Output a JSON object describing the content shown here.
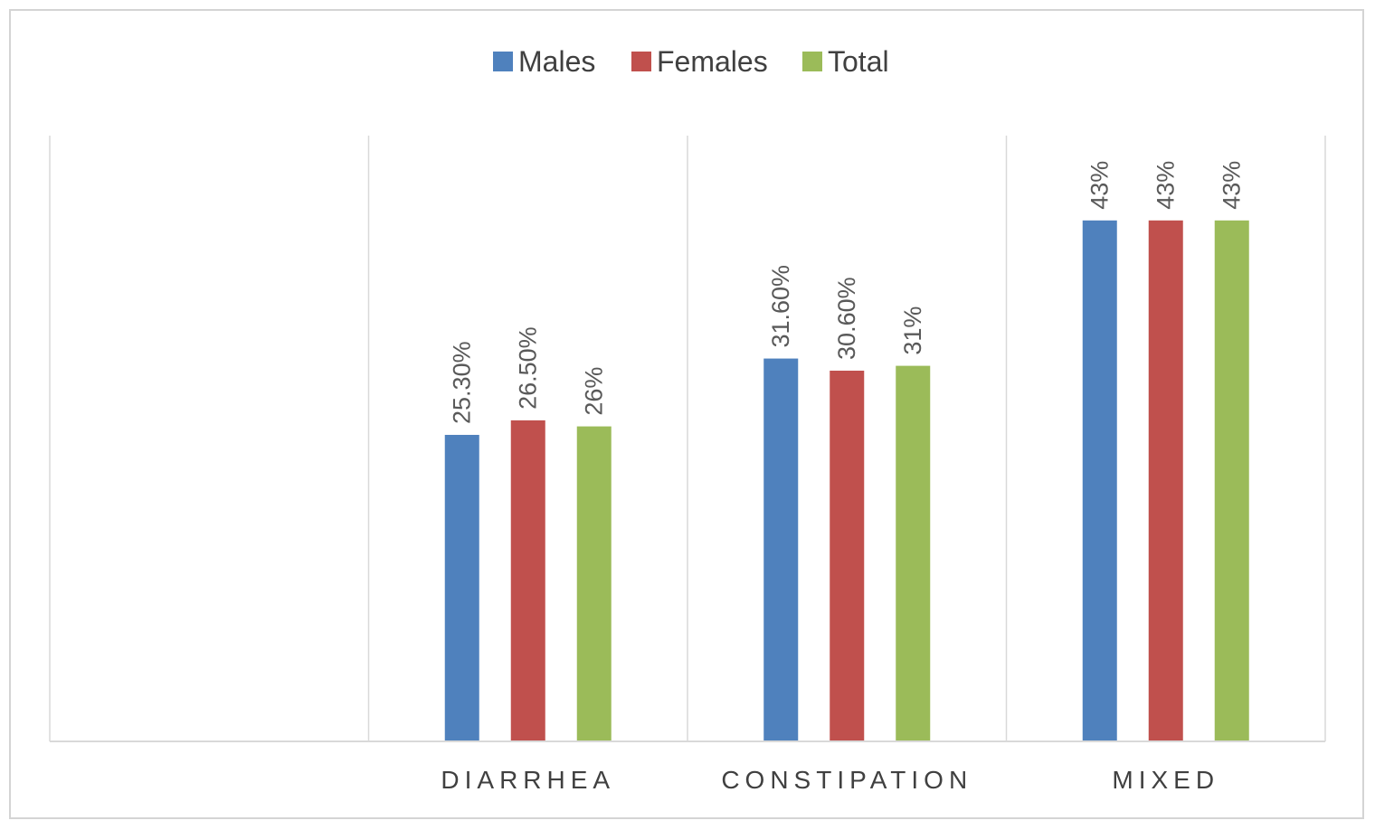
{
  "chart_data": {
    "type": "bar",
    "title": "",
    "xlabel": "",
    "ylabel": "",
    "ylim": [
      0,
      50
    ],
    "grid": "vertical category separators",
    "legend_position": "top",
    "categories": [
      "",
      "DIARRHEA",
      "CONSTIPATION",
      "MIXED"
    ],
    "series": [
      {
        "name": "Males",
        "color": "#4f81bd",
        "values": [
          null,
          25.3,
          31.6,
          43
        ],
        "labels": [
          "",
          "25.30%",
          "31.60%",
          "43%"
        ]
      },
      {
        "name": "Females",
        "color": "#c0504d",
        "values": [
          null,
          26.5,
          30.6,
          43
        ],
        "labels": [
          "",
          "26.50%",
          "30.60%",
          "43%"
        ]
      },
      {
        "name": "Total",
        "color": "#9bbb59",
        "values": [
          null,
          26,
          31,
          43
        ],
        "labels": [
          "",
          "26%",
          "31%",
          "43%"
        ]
      }
    ]
  }
}
